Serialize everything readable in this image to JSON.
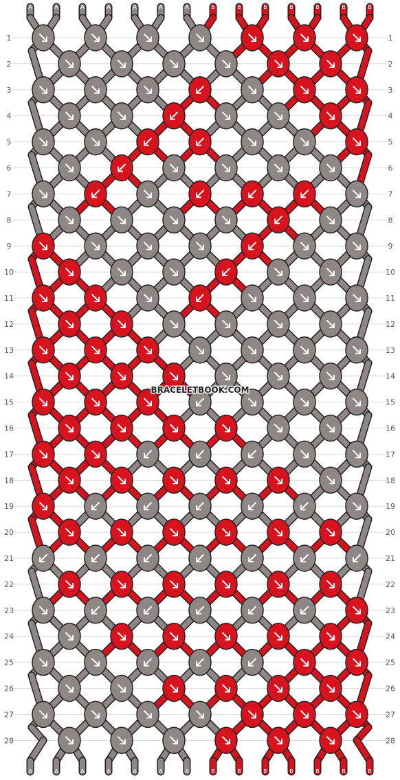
{
  "watermark": "BRACELETBOOK.COM",
  "colors": {
    "A": "#8e8785",
    "B": "#d9131d",
    "outline": "#222222",
    "rule": "#cfcfcf",
    "arrow": "#ffffff"
  },
  "strands_top": [
    "A",
    "A",
    "A",
    "A",
    "A",
    "A",
    "A",
    "B",
    "B",
    "B",
    "B",
    "B",
    "B",
    "B"
  ],
  "strands_bottom": [
    "A",
    "A",
    "A",
    "A",
    "A",
    "A",
    "A",
    "B",
    "B",
    "B",
    "B",
    "B",
    "B",
    "B"
  ],
  "rows": [
    {
      "num": "1",
      "knots": [
        {
          "c": "A",
          "d": "dr"
        },
        {
          "c": "A",
          "d": "dr"
        },
        {
          "c": "A",
          "d": "dr"
        },
        {
          "c": "A",
          "d": "dr"
        },
        {
          "c": "B",
          "d": "dr"
        },
        {
          "c": "B",
          "d": "dr"
        },
        {
          "c": "B",
          "d": "dr"
        }
      ]
    },
    {
      "num": "2",
      "knots": [
        {
          "c": "A",
          "d": "dr"
        },
        {
          "c": "A",
          "d": "dr"
        },
        {
          "c": "A",
          "d": "dr"
        },
        {
          "c": "A",
          "d": "dr"
        },
        {
          "c": "B",
          "d": "dr"
        },
        {
          "c": "B",
          "d": "dr"
        }
      ]
    },
    {
      "num": "3",
      "knots": [
        {
          "c": "A",
          "d": "dr"
        },
        {
          "c": "A",
          "d": "dr"
        },
        {
          "c": "A",
          "d": "dr"
        },
        {
          "c": "B",
          "d": "dl"
        },
        {
          "c": "A",
          "d": "dr"
        },
        {
          "c": "B",
          "d": "dr"
        },
        {
          "c": "B",
          "d": "dr"
        }
      ]
    },
    {
      "num": "4",
      "knots": [
        {
          "c": "A",
          "d": "dr"
        },
        {
          "c": "A",
          "d": "dr"
        },
        {
          "c": "B",
          "d": "dl"
        },
        {
          "c": "A",
          "d": "dr"
        },
        {
          "c": "A",
          "d": "dr"
        },
        {
          "c": "B",
          "d": "dr"
        }
      ]
    },
    {
      "num": "5",
      "knots": [
        {
          "c": "A",
          "d": "dr"
        },
        {
          "c": "A",
          "d": "dr"
        },
        {
          "c": "B",
          "d": "dl"
        },
        {
          "c": "B",
          "d": "dl"
        },
        {
          "c": "A",
          "d": "dr"
        },
        {
          "c": "A",
          "d": "dr"
        },
        {
          "c": "B",
          "d": "dr"
        }
      ]
    },
    {
      "num": "6",
      "knots": [
        {
          "c": "A",
          "d": "dr"
        },
        {
          "c": "B",
          "d": "dl"
        },
        {
          "c": "A",
          "d": "dr"
        },
        {
          "c": "A",
          "d": "dr"
        },
        {
          "c": "A",
          "d": "dr"
        },
        {
          "c": "A",
          "d": "dr"
        }
      ]
    },
    {
      "num": "7",
      "knots": [
        {
          "c": "A",
          "d": "dr"
        },
        {
          "c": "B",
          "d": "dl"
        },
        {
          "c": "A",
          "d": "dr"
        },
        {
          "c": "B",
          "d": "dl"
        },
        {
          "c": "B",
          "d": "dl"
        },
        {
          "c": "B",
          "d": "dl"
        },
        {
          "c": "A",
          "d": "dr"
        }
      ]
    },
    {
      "num": "8",
      "knots": [
        {
          "c": "A",
          "d": "dr"
        },
        {
          "c": "A",
          "d": "dr"
        },
        {
          "c": "A",
          "d": "dr"
        },
        {
          "c": "A",
          "d": "dr"
        },
        {
          "c": "B",
          "d": "dl"
        },
        {
          "c": "A",
          "d": "dr"
        }
      ]
    },
    {
      "num": "9",
      "knots": [
        {
          "c": "B",
          "d": "dr"
        },
        {
          "c": "A",
          "d": "dr"
        },
        {
          "c": "A",
          "d": "dr"
        },
        {
          "c": "A",
          "d": "dr"
        },
        {
          "c": "B",
          "d": "dl"
        },
        {
          "c": "A",
          "d": "dr"
        },
        {
          "c": "A",
          "d": "dr"
        }
      ]
    },
    {
      "num": "10",
      "knots": [
        {
          "c": "B",
          "d": "dr"
        },
        {
          "c": "A",
          "d": "dr"
        },
        {
          "c": "A",
          "d": "dr"
        },
        {
          "c": "B",
          "d": "dl"
        },
        {
          "c": "A",
          "d": "dr"
        },
        {
          "c": "A",
          "d": "dr"
        }
      ]
    },
    {
      "num": "11",
      "knots": [
        {
          "c": "B",
          "d": "dr"
        },
        {
          "c": "B",
          "d": "dr"
        },
        {
          "c": "A",
          "d": "dr"
        },
        {
          "c": "B",
          "d": "dl"
        },
        {
          "c": "A",
          "d": "dr"
        },
        {
          "c": "A",
          "d": "dr"
        },
        {
          "c": "A",
          "d": "dr"
        }
      ]
    },
    {
      "num": "12",
      "knots": [
        {
          "c": "B",
          "d": "dr"
        },
        {
          "c": "B",
          "d": "dr"
        },
        {
          "c": "A",
          "d": "dr"
        },
        {
          "c": "A",
          "d": "dr"
        },
        {
          "c": "A",
          "d": "dr"
        },
        {
          "c": "A",
          "d": "dr"
        }
      ]
    },
    {
      "num": "13",
      "knots": [
        {
          "c": "B",
          "d": "dr"
        },
        {
          "c": "B",
          "d": "dr"
        },
        {
          "c": "B",
          "d": "dr"
        },
        {
          "c": "A",
          "d": "dr"
        },
        {
          "c": "A",
          "d": "dr"
        },
        {
          "c": "A",
          "d": "dr"
        },
        {
          "c": "A",
          "d": "dr"
        }
      ]
    },
    {
      "num": "14",
      "knots": [
        {
          "c": "B",
          "d": "dr"
        },
        {
          "c": "B",
          "d": "dr"
        },
        {
          "c": "B",
          "d": "dr"
        },
        {
          "c": "A",
          "d": "dr"
        },
        {
          "c": "A",
          "d": "dr"
        },
        {
          "c": "A",
          "d": "dr"
        }
      ]
    },
    {
      "num": "15",
      "knots": [
        {
          "c": "B",
          "d": "dr"
        },
        {
          "c": "B",
          "d": "dr"
        },
        {
          "c": "B",
          "d": "dr"
        },
        {
          "c": "A",
          "d": "dl"
        },
        {
          "c": "A",
          "d": "dr"
        },
        {
          "c": "A",
          "d": "dr"
        },
        {
          "c": "A",
          "d": "dr"
        }
      ]
    },
    {
      "num": "16",
      "knots": [
        {
          "c": "B",
          "d": "dr"
        },
        {
          "c": "B",
          "d": "dr"
        },
        {
          "c": "B",
          "d": "dr"
        },
        {
          "c": "B",
          "d": "dr"
        },
        {
          "c": "A",
          "d": "dr"
        },
        {
          "c": "A",
          "d": "dr"
        }
      ]
    },
    {
      "num": "17",
      "knots": [
        {
          "c": "B",
          "d": "dr"
        },
        {
          "c": "B",
          "d": "dr"
        },
        {
          "c": "A",
          "d": "dl"
        },
        {
          "c": "A",
          "d": "dl"
        },
        {
          "c": "A",
          "d": "dl"
        },
        {
          "c": "A",
          "d": "dr"
        },
        {
          "c": "A",
          "d": "dr"
        }
      ]
    },
    {
      "num": "18",
      "knots": [
        {
          "c": "B",
          "d": "dr"
        },
        {
          "c": "B",
          "d": "dr"
        },
        {
          "c": "B",
          "d": "dr"
        },
        {
          "c": "B",
          "d": "dr"
        },
        {
          "c": "B",
          "d": "dr"
        },
        {
          "c": "A",
          "d": "dr"
        }
      ]
    },
    {
      "num": "19",
      "knots": [
        {
          "c": "B",
          "d": "dr"
        },
        {
          "c": "A",
          "d": "dl"
        },
        {
          "c": "A",
          "d": "dl"
        },
        {
          "c": "A",
          "d": "dl"
        },
        {
          "c": "A",
          "d": "dl"
        },
        {
          "c": "A",
          "d": "dl"
        },
        {
          "c": "A",
          "d": "dr"
        }
      ]
    },
    {
      "num": "20",
      "knots": [
        {
          "c": "B",
          "d": "dr"
        },
        {
          "c": "B",
          "d": "dr"
        },
        {
          "c": "B",
          "d": "dr"
        },
        {
          "c": "B",
          "d": "dr"
        },
        {
          "c": "B",
          "d": "dr"
        },
        {
          "c": "B",
          "d": "dr"
        }
      ]
    },
    {
      "num": "21",
      "knots": [
        {
          "c": "A",
          "d": "dl"
        },
        {
          "c": "A",
          "d": "dl"
        },
        {
          "c": "A",
          "d": "dl"
        },
        {
          "c": "A",
          "d": "dl"
        },
        {
          "c": "A",
          "d": "dl"
        },
        {
          "c": "A",
          "d": "dl"
        },
        {
          "c": "A",
          "d": "dl"
        }
      ]
    },
    {
      "num": "22",
      "knots": [
        {
          "c": "B",
          "d": "dr"
        },
        {
          "c": "B",
          "d": "dr"
        },
        {
          "c": "B",
          "d": "dr"
        },
        {
          "c": "B",
          "d": "dr"
        },
        {
          "c": "B",
          "d": "dr"
        },
        {
          "c": "B",
          "d": "dr"
        }
      ]
    },
    {
      "num": "23",
      "knots": [
        {
          "c": "A",
          "d": "dr"
        },
        {
          "c": "A",
          "d": "dl"
        },
        {
          "c": "A",
          "d": "dl"
        },
        {
          "c": "A",
          "d": "dl"
        },
        {
          "c": "A",
          "d": "dl"
        },
        {
          "c": "A",
          "d": "dl"
        },
        {
          "c": "B",
          "d": "dr"
        }
      ]
    },
    {
      "num": "24",
      "knots": [
        {
          "c": "A",
          "d": "dr"
        },
        {
          "c": "B",
          "d": "dr"
        },
        {
          "c": "B",
          "d": "dr"
        },
        {
          "c": "B",
          "d": "dr"
        },
        {
          "c": "B",
          "d": "dr"
        },
        {
          "c": "B",
          "d": "dr"
        }
      ]
    },
    {
      "num": "25",
      "knots": [
        {
          "c": "A",
          "d": "dr"
        },
        {
          "c": "A",
          "d": "dr"
        },
        {
          "c": "A",
          "d": "dl"
        },
        {
          "c": "A",
          "d": "dl"
        },
        {
          "c": "A",
          "d": "dl"
        },
        {
          "c": "B",
          "d": "dr"
        },
        {
          "c": "B",
          "d": "dr"
        }
      ]
    },
    {
      "num": "26",
      "knots": [
        {
          "c": "A",
          "d": "dr"
        },
        {
          "c": "A",
          "d": "dr"
        },
        {
          "c": "B",
          "d": "dr"
        },
        {
          "c": "B",
          "d": "dr"
        },
        {
          "c": "B",
          "d": "dr"
        },
        {
          "c": "B",
          "d": "dr"
        }
      ]
    },
    {
      "num": "27",
      "knots": [
        {
          "c": "A",
          "d": "dr"
        },
        {
          "c": "A",
          "d": "dr"
        },
        {
          "c": "A",
          "d": "dr"
        },
        {
          "c": "A",
          "d": "dr"
        },
        {
          "c": "B",
          "d": "dr"
        },
        {
          "c": "B",
          "d": "dr"
        },
        {
          "c": "B",
          "d": "dr"
        }
      ]
    },
    {
      "num": "28",
      "knots": [
        {
          "c": "A",
          "d": "dr"
        },
        {
          "c": "A",
          "d": "dr"
        },
        {
          "c": "A",
          "d": "dr"
        },
        {
          "c": "B",
          "d": "dr"
        },
        {
          "c": "B",
          "d": "dr"
        },
        {
          "c": "B",
          "d": "dr"
        }
      ]
    }
  ]
}
